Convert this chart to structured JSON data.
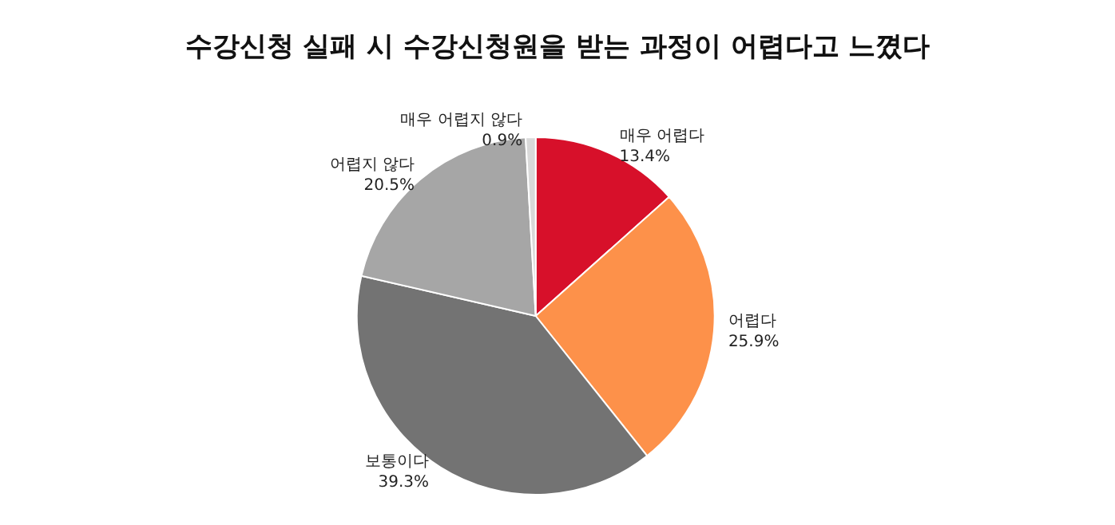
{
  "chart_data": {
    "type": "pie",
    "title": "수강신청 실패 시 수강신청원을 받는 과정이 어렵다고 느꼈다",
    "categories": [
      "매우 어렵다",
      "어렵다",
      "보통이다",
      "어렵지 않다",
      "매우 어렵지 않다"
    ],
    "values": [
      13.4,
      25.9,
      39.3,
      20.5,
      0.9
    ],
    "value_labels": [
      "13.4%",
      "25.9%",
      "39.3%",
      "20.5%",
      "0.9%"
    ],
    "colors": [
      "#d7102a",
      "#fd914a",
      "#737373",
      "#a6a6a6",
      "#d9d9d9"
    ],
    "legend": false
  }
}
